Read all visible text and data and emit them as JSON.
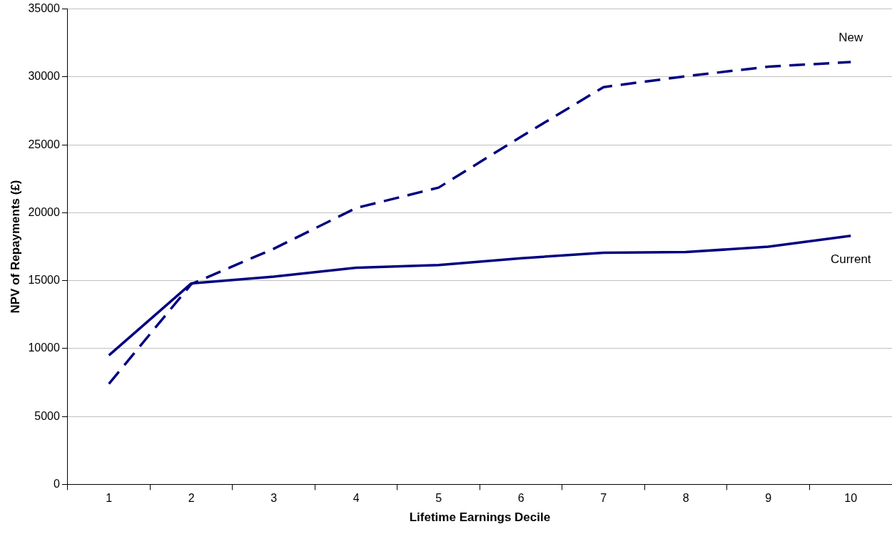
{
  "chart_data": {
    "type": "line",
    "xlabel": "Lifetime Earnings Decile",
    "ylabel": "NPV of Repayments (£)",
    "categories": [
      "1",
      "2",
      "3",
      "4",
      "5",
      "6",
      "7",
      "8",
      "9",
      "10"
    ],
    "series": [
      {
        "name": "Current",
        "color": "#000080",
        "line_style": "solid",
        "values": [
          9500,
          14800,
          15300,
          15950,
          16150,
          16650,
          17050,
          17100,
          17500,
          18300
        ]
      },
      {
        "name": "New",
        "color": "#000080",
        "line_style": "dashed",
        "values": [
          7400,
          14750,
          17350,
          20350,
          21850,
          25600,
          29250,
          30050,
          30750,
          31100
        ]
      }
    ],
    "ylim": [
      0,
      35000
    ],
    "yticks": [
      0,
      5000,
      10000,
      15000,
      20000,
      25000,
      30000,
      35000
    ],
    "grid": "y",
    "legend": false,
    "marker": "none"
  }
}
